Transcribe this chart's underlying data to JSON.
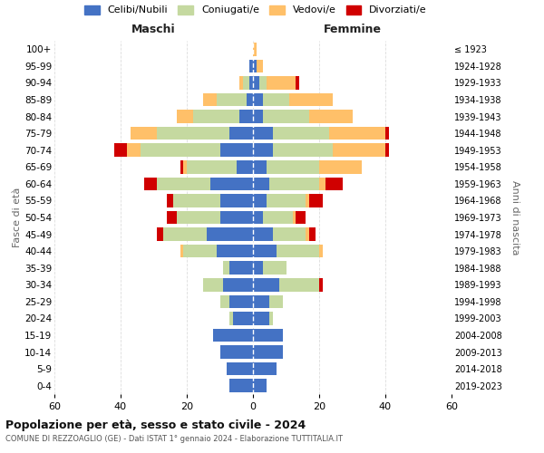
{
  "age_groups": [
    "0-4",
    "5-9",
    "10-14",
    "15-19",
    "20-24",
    "25-29",
    "30-34",
    "35-39",
    "40-44",
    "45-49",
    "50-54",
    "55-59",
    "60-64",
    "65-69",
    "70-74",
    "75-79",
    "80-84",
    "85-89",
    "90-94",
    "95-99",
    "100+"
  ],
  "birth_years": [
    "2019-2023",
    "2014-2018",
    "2009-2013",
    "2004-2008",
    "1999-2003",
    "1994-1998",
    "1989-1993",
    "1984-1988",
    "1979-1983",
    "1974-1978",
    "1969-1973",
    "1964-1968",
    "1959-1963",
    "1954-1958",
    "1949-1953",
    "1944-1948",
    "1939-1943",
    "1934-1938",
    "1929-1933",
    "1924-1928",
    "≤ 1923"
  ],
  "colors": {
    "celibi": "#4472c4",
    "coniugati": "#c5d9a0",
    "vedovi": "#ffc069",
    "divorziati": "#d00000"
  },
  "maschi": {
    "celibi": [
      7,
      8,
      10,
      12,
      6,
      7,
      9,
      7,
      11,
      14,
      10,
      10,
      13,
      5,
      10,
      7,
      4,
      2,
      1,
      1,
      0
    ],
    "coniugati": [
      0,
      0,
      0,
      0,
      1,
      3,
      6,
      2,
      10,
      13,
      13,
      14,
      16,
      15,
      24,
      22,
      14,
      9,
      2,
      0,
      0
    ],
    "vedovi": [
      0,
      0,
      0,
      0,
      0,
      0,
      0,
      0,
      1,
      0,
      0,
      0,
      0,
      1,
      4,
      8,
      5,
      4,
      1,
      0,
      0
    ],
    "divorziati": [
      0,
      0,
      0,
      0,
      0,
      0,
      0,
      0,
      0,
      2,
      3,
      2,
      4,
      1,
      4,
      0,
      0,
      0,
      0,
      0,
      0
    ]
  },
  "femmine": {
    "celibi": [
      4,
      7,
      9,
      9,
      5,
      5,
      8,
      3,
      7,
      6,
      3,
      4,
      5,
      4,
      6,
      6,
      3,
      3,
      2,
      1,
      0
    ],
    "coniugati": [
      0,
      0,
      0,
      0,
      1,
      4,
      12,
      7,
      13,
      10,
      9,
      12,
      15,
      16,
      18,
      17,
      14,
      8,
      2,
      0,
      0
    ],
    "vedovi": [
      0,
      0,
      0,
      0,
      0,
      0,
      0,
      0,
      1,
      1,
      1,
      1,
      2,
      13,
      16,
      17,
      13,
      13,
      9,
      2,
      1
    ],
    "divorziati": [
      0,
      0,
      0,
      0,
      0,
      0,
      1,
      0,
      0,
      2,
      3,
      4,
      5,
      0,
      1,
      1,
      0,
      0,
      1,
      0,
      0
    ]
  },
  "xlim": 60,
  "title_main": "Popolazione per età, sesso e stato civile - 2024",
  "title_sub": "COMUNE DI REZZOAGLIO (GE) - Dati ISTAT 1° gennaio 2024 - Elaborazione TUTTITALIA.IT",
  "legend_labels": [
    "Celibi/Nubili",
    "Coniugati/e",
    "Vedovi/e",
    "Divorziati/e"
  ],
  "left_label": "Maschi",
  "right_label": "Femmine",
  "ylabel": "Fasce di età",
  "right_ylabel": "Anni di nascita",
  "background_color": "#ffffff",
  "grid_color": "#cccccc"
}
